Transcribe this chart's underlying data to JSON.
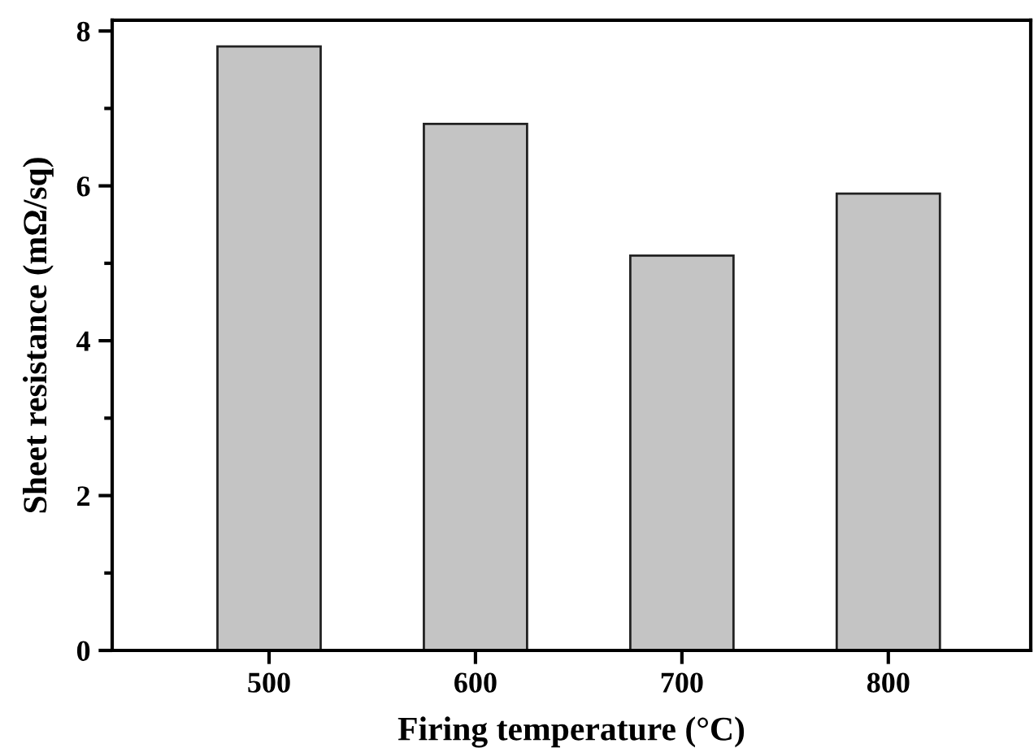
{
  "chart_data": {
    "type": "bar",
    "categories": [
      "500",
      "600",
      "700",
      "800"
    ],
    "values": [
      7.8,
      6.8,
      5.1,
      5.9
    ],
    "color": "#c4c4c4",
    "xlabel": "Firing temperature (°C)",
    "ylabel": "Sheet resistance (mΩ/sq)",
    "ylim": [
      0,
      8.14
    ],
    "yticks": [
      0,
      2,
      4,
      6,
      8
    ],
    "grid": false,
    "legend": false
  }
}
